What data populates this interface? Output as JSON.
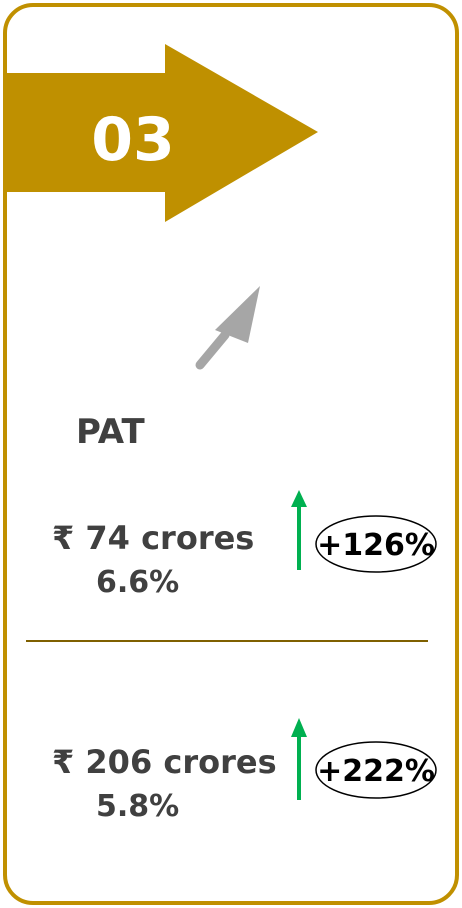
{
  "badge": "03",
  "title": "PAT",
  "rows": [
    {
      "amount": "₹ 74 crores",
      "margin": "6.6%",
      "growth": "+126%"
    },
    {
      "amount": "₹ 206 crores",
      "margin": "5.8%",
      "growth": "+222%"
    }
  ]
}
